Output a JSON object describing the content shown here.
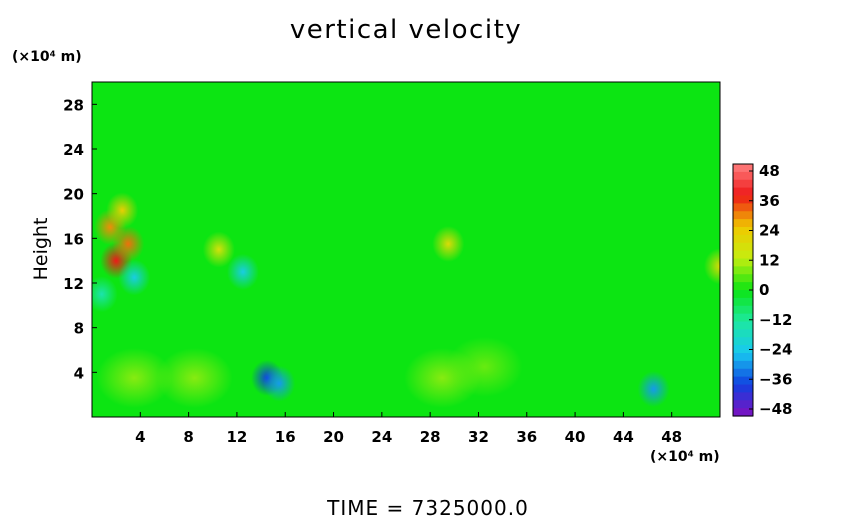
{
  "chart_data": {
    "type": "heatmap",
    "title": "vertical velocity",
    "footer": "TIME = 7325000.0",
    "ylabel": "Height",
    "y_units": "(×10⁴ m)",
    "x_units": "(×10⁴ m)",
    "xlim": [
      0,
      52
    ],
    "ylim": [
      0,
      30
    ],
    "x_ticks": [
      "4",
      "8",
      "12",
      "16",
      "20",
      "24",
      "28",
      "32",
      "36",
      "40",
      "44",
      "48"
    ],
    "y_ticks": [
      "4",
      "8",
      "12",
      "16",
      "20",
      "24",
      "28"
    ],
    "colorbar": {
      "ticks": [
        "48",
        "36",
        "24",
        "12",
        "0",
        "−12",
        "−24",
        "−36",
        "−48"
      ],
      "range": [
        -48,
        48
      ]
    },
    "background_value": 0,
    "features": [
      {
        "x": 2.0,
        "y": 14.0,
        "value": 36
      },
      {
        "x": 1.5,
        "y": 17.0,
        "value": 28
      },
      {
        "x": 3.0,
        "y": 15.5,
        "value": 30
      },
      {
        "x": 2.5,
        "y": 18.5,
        "value": 22
      },
      {
        "x": 3.5,
        "y": 12.5,
        "value": -22
      },
      {
        "x": 0.8,
        "y": 11.0,
        "value": -14
      },
      {
        "x": 12.5,
        "y": 13.0,
        "value": -22
      },
      {
        "x": 10.5,
        "y": 15.0,
        "value": 16
      },
      {
        "x": 29.5,
        "y": 15.5,
        "value": 18
      },
      {
        "x": 52.0,
        "y": 13.5,
        "value": 18
      },
      {
        "x": 14.5,
        "y": 3.5,
        "value": -36
      },
      {
        "x": 15.5,
        "y": 3.0,
        "value": -28
      },
      {
        "x": 46.5,
        "y": 2.5,
        "value": -28
      },
      {
        "x": 3.5,
        "y": 3.5,
        "value": 8
      },
      {
        "x": 8.5,
        "y": 3.5,
        "value": 8
      },
      {
        "x": 29.0,
        "y": 3.5,
        "value": 8
      },
      {
        "x": 32.5,
        "y": 4.5,
        "value": 6
      }
    ]
  }
}
